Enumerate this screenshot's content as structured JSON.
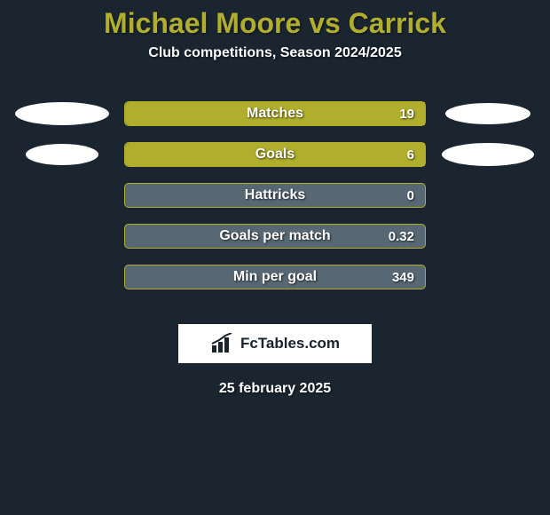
{
  "title": {
    "text": "Michael Moore vs Carrick",
    "color": "#b0ae2c",
    "fontsize": 32
  },
  "subtitle": {
    "text": "Club competitions, Season 2024/2025",
    "color": "#ffffff",
    "fontsize": 16
  },
  "date": {
    "text": "25 february 2025",
    "color": "#ffffff",
    "fontsize": 16
  },
  "brand": {
    "text": "FcTables.com",
    "bg": "#ffffff",
    "color": "#18222c",
    "fontsize": 17
  },
  "stats": {
    "bar_track_color": "#576874",
    "bar_fill_color": "#b0ae2c",
    "label_color": "#ffffff",
    "label_fontsize": 16,
    "value_fontsize": 15,
    "rows": [
      {
        "label": "Matches",
        "value": "19",
        "fill_pct": 100
      },
      {
        "label": "Goals",
        "value": "6",
        "fill_pct": 100
      },
      {
        "label": "Hattricks",
        "value": "0",
        "fill_pct": 0
      },
      {
        "label": "Goals per match",
        "value": "0.32",
        "fill_pct": 0
      },
      {
        "label": "Min per goal",
        "value": "349",
        "fill_pct": 0
      }
    ]
  },
  "ellipses": {
    "color": "#ffffff",
    "left": [
      {
        "w": 106,
        "h": 26
      },
      {
        "w": 82,
        "h": 24
      }
    ],
    "right": [
      {
        "w": 96,
        "h": 24
      },
      {
        "w": 104,
        "h": 26
      }
    ]
  },
  "background_color": "#1a2530"
}
